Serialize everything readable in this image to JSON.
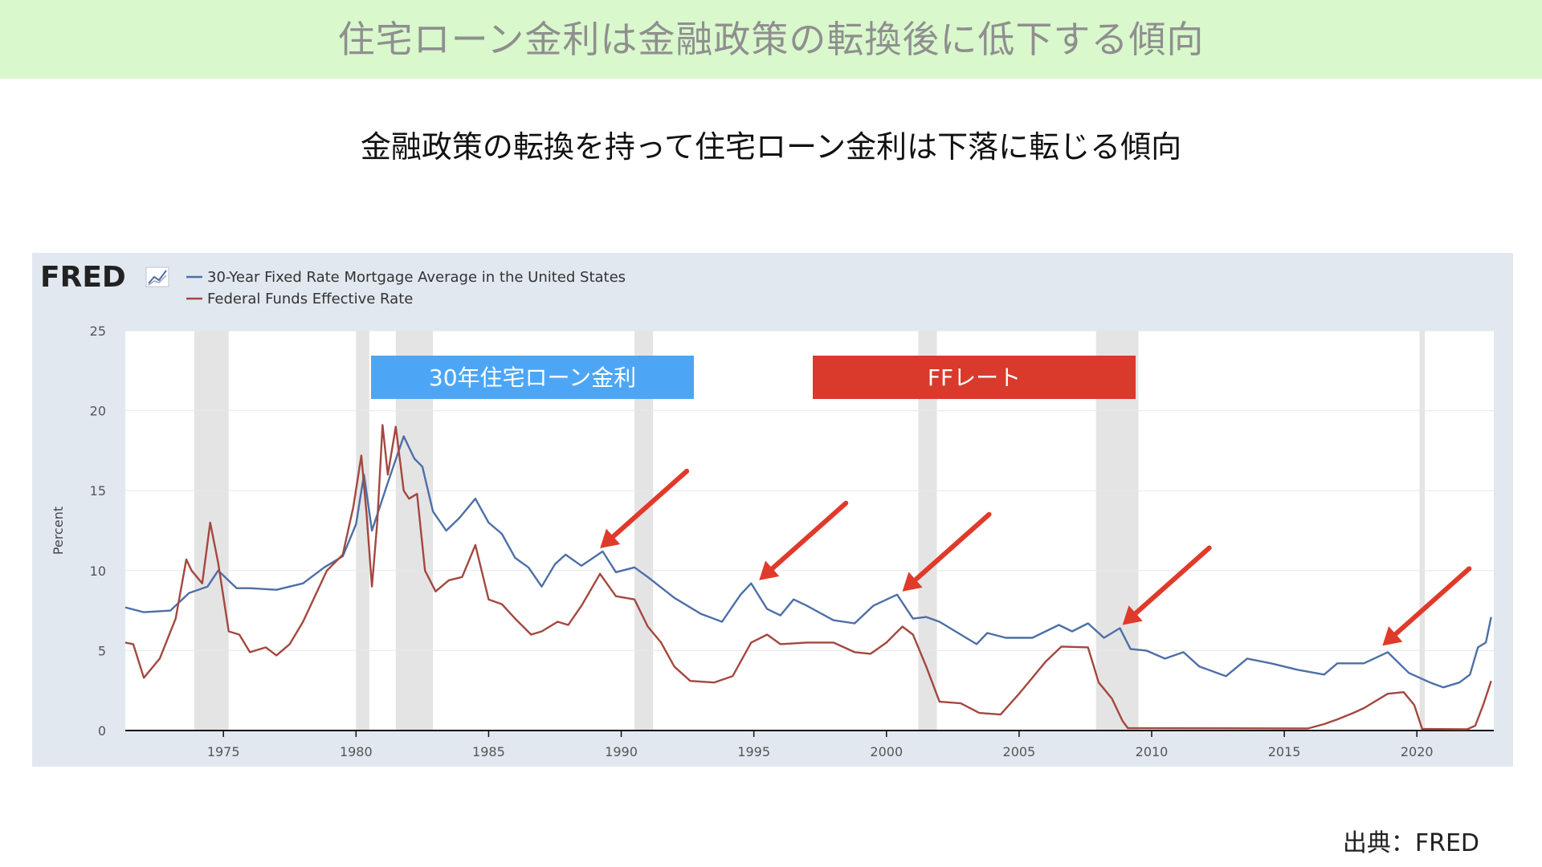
{
  "header": {
    "title": "住宅ローン金利は金融政策の転換後に低下する傾向"
  },
  "subtitle": "金融政策の転換を持って住宅ローン金利は下落に転じる傾向",
  "source": "出典：FRED",
  "chart_data": {
    "type": "line",
    "logo": "FRED",
    "title": "",
    "xlabel": "",
    "ylabel": "Percent",
    "xlim": [
      1971.3,
      2022.9
    ],
    "ylim": [
      0,
      25
    ],
    "x_ticks": [
      1975,
      1980,
      1985,
      1990,
      1995,
      2000,
      2005,
      2010,
      2015,
      2020
    ],
    "y_ticks": [
      0,
      5,
      10,
      15,
      20,
      25
    ],
    "grid": true,
    "legend_position": "top-left",
    "recessions": [
      [
        1973.9,
        1975.2
      ],
      [
        1980.0,
        1980.5
      ],
      [
        1981.5,
        1982.9
      ],
      [
        1990.5,
        1991.2
      ],
      [
        2001.2,
        2001.9
      ],
      [
        2007.9,
        2009.5
      ],
      [
        2020.1,
        2020.3
      ]
    ],
    "series": [
      {
        "name": "30-Year Fixed Rate Mortgage Average in the United States",
        "color": "#4d6fa6",
        "points": [
          [
            1971.3,
            7.7
          ],
          [
            1972.0,
            7.4
          ],
          [
            1973.0,
            7.5
          ],
          [
            1973.7,
            8.6
          ],
          [
            1974.4,
            9.0
          ],
          [
            1974.8,
            10.0
          ],
          [
            1975.5,
            8.9
          ],
          [
            1976.0,
            8.9
          ],
          [
            1977.0,
            8.8
          ],
          [
            1978.0,
            9.2
          ],
          [
            1978.8,
            10.2
          ],
          [
            1979.5,
            10.9
          ],
          [
            1980.0,
            12.9
          ],
          [
            1980.3,
            16.0
          ],
          [
            1980.6,
            12.5
          ],
          [
            1980.9,
            14.0
          ],
          [
            1981.2,
            15.5
          ],
          [
            1981.8,
            18.4
          ],
          [
            1982.2,
            17.0
          ],
          [
            1982.5,
            16.5
          ],
          [
            1982.9,
            13.7
          ],
          [
            1983.4,
            12.5
          ],
          [
            1983.9,
            13.3
          ],
          [
            1984.5,
            14.5
          ],
          [
            1985.0,
            13.0
          ],
          [
            1985.5,
            12.3
          ],
          [
            1986.0,
            10.8
          ],
          [
            1986.5,
            10.2
          ],
          [
            1987.0,
            9.0
          ],
          [
            1987.5,
            10.4
          ],
          [
            1987.9,
            11.0
          ],
          [
            1988.5,
            10.3
          ],
          [
            1989.3,
            11.2
          ],
          [
            1989.8,
            9.9
          ],
          [
            1990.5,
            10.2
          ],
          [
            1991.0,
            9.6
          ],
          [
            1992.0,
            8.3
          ],
          [
            1993.0,
            7.3
          ],
          [
            1993.8,
            6.8
          ],
          [
            1994.5,
            8.5
          ],
          [
            1994.9,
            9.2
          ],
          [
            1995.5,
            7.6
          ],
          [
            1996.0,
            7.2
          ],
          [
            1996.5,
            8.2
          ],
          [
            1997.0,
            7.8
          ],
          [
            1998.0,
            6.9
          ],
          [
            1998.8,
            6.7
          ],
          [
            1999.5,
            7.8
          ],
          [
            2000.4,
            8.5
          ],
          [
            2001.0,
            7.0
          ],
          [
            2001.5,
            7.1
          ],
          [
            2002.0,
            6.8
          ],
          [
            2003.4,
            5.4
          ],
          [
            2003.8,
            6.1
          ],
          [
            2004.5,
            5.8
          ],
          [
            2005.5,
            5.8
          ],
          [
            2006.5,
            6.6
          ],
          [
            2007.0,
            6.2
          ],
          [
            2007.6,
            6.7
          ],
          [
            2008.2,
            5.8
          ],
          [
            2008.8,
            6.4
          ],
          [
            2009.2,
            5.1
          ],
          [
            2009.8,
            5.0
          ],
          [
            2010.5,
            4.5
          ],
          [
            2011.2,
            4.9
          ],
          [
            2011.8,
            4.0
          ],
          [
            2012.8,
            3.4
          ],
          [
            2013.6,
            4.5
          ],
          [
            2014.5,
            4.2
          ],
          [
            2015.5,
            3.8
          ],
          [
            2016.5,
            3.5
          ],
          [
            2017.0,
            4.2
          ],
          [
            2018.0,
            4.2
          ],
          [
            2018.9,
            4.9
          ],
          [
            2019.7,
            3.6
          ],
          [
            2020.5,
            3.0
          ],
          [
            2021.0,
            2.7
          ],
          [
            2021.6,
            3.0
          ],
          [
            2022.0,
            3.5
          ],
          [
            2022.3,
            5.2
          ],
          [
            2022.6,
            5.5
          ],
          [
            2022.8,
            7.1
          ]
        ]
      },
      {
        "name": "Federal Funds Effective Rate",
        "color": "#a3483f",
        "points": [
          [
            1971.3,
            5.5
          ],
          [
            1971.6,
            5.4
          ],
          [
            1972.0,
            3.3
          ],
          [
            1972.6,
            4.5
          ],
          [
            1973.2,
            7.0
          ],
          [
            1973.6,
            10.7
          ],
          [
            1973.8,
            10.0
          ],
          [
            1974.2,
            9.2
          ],
          [
            1974.5,
            13.0
          ],
          [
            1974.8,
            10.5
          ],
          [
            1975.2,
            6.2
          ],
          [
            1975.6,
            6.0
          ],
          [
            1976.0,
            4.9
          ],
          [
            1976.6,
            5.2
          ],
          [
            1977.0,
            4.7
          ],
          [
            1977.5,
            5.4
          ],
          [
            1978.0,
            6.8
          ],
          [
            1978.9,
            10.0
          ],
          [
            1979.5,
            11.0
          ],
          [
            1979.9,
            14.0
          ],
          [
            1980.2,
            17.2
          ],
          [
            1980.4,
            13.5
          ],
          [
            1980.6,
            9.0
          ],
          [
            1980.8,
            13.0
          ],
          [
            1981.0,
            19.1
          ],
          [
            1981.2,
            16.0
          ],
          [
            1981.5,
            19.0
          ],
          [
            1981.8,
            15.0
          ],
          [
            1982.0,
            14.5
          ],
          [
            1982.3,
            14.8
          ],
          [
            1982.6,
            10.0
          ],
          [
            1983.0,
            8.7
          ],
          [
            1983.5,
            9.4
          ],
          [
            1984.0,
            9.6
          ],
          [
            1984.5,
            11.6
          ],
          [
            1985.0,
            8.2
          ],
          [
            1985.5,
            7.9
          ],
          [
            1986.0,
            7.0
          ],
          [
            1986.6,
            6.0
          ],
          [
            1987.0,
            6.2
          ],
          [
            1987.6,
            6.8
          ],
          [
            1988.0,
            6.6
          ],
          [
            1988.5,
            7.8
          ],
          [
            1989.2,
            9.8
          ],
          [
            1989.8,
            8.4
          ],
          [
            1990.5,
            8.2
          ],
          [
            1991.0,
            6.5
          ],
          [
            1991.5,
            5.5
          ],
          [
            1992.0,
            4.0
          ],
          [
            1992.6,
            3.1
          ],
          [
            1993.5,
            3.0
          ],
          [
            1994.2,
            3.4
          ],
          [
            1994.9,
            5.5
          ],
          [
            1995.5,
            6.0
          ],
          [
            1996.0,
            5.4
          ],
          [
            1997.0,
            5.5
          ],
          [
            1998.0,
            5.5
          ],
          [
            1998.8,
            4.9
          ],
          [
            1999.4,
            4.8
          ],
          [
            2000.0,
            5.5
          ],
          [
            2000.6,
            6.5
          ],
          [
            2001.0,
            6.0
          ],
          [
            2001.5,
            4.0
          ],
          [
            2002.0,
            1.8
          ],
          [
            2002.8,
            1.7
          ],
          [
            2003.5,
            1.1
          ],
          [
            2004.3,
            1.0
          ],
          [
            2005.0,
            2.3
          ],
          [
            2006.0,
            4.3
          ],
          [
            2006.6,
            5.25
          ],
          [
            2007.6,
            5.2
          ],
          [
            2008.0,
            3.0
          ],
          [
            2008.5,
            2.0
          ],
          [
            2008.9,
            0.6
          ],
          [
            2009.1,
            0.15
          ],
          [
            2015.9,
            0.13
          ],
          [
            2016.5,
            0.4
          ],
          [
            2017.0,
            0.7
          ],
          [
            2017.6,
            1.1
          ],
          [
            2018.0,
            1.4
          ],
          [
            2018.9,
            2.3
          ],
          [
            2019.5,
            2.4
          ],
          [
            2019.9,
            1.6
          ],
          [
            2020.2,
            0.1
          ],
          [
            2021.9,
            0.08
          ],
          [
            2022.2,
            0.3
          ],
          [
            2022.5,
            1.6
          ],
          [
            2022.8,
            3.1
          ]
        ]
      }
    ],
    "labels": [
      {
        "text": "30年住宅ローン金利",
        "background": "#4da6f5",
        "color": "#ffffff"
      },
      {
        "text": "FFレート",
        "background": "#d93a2b",
        "color": "#ffffff"
      }
    ],
    "annotations_color": "#e03a2a",
    "arrows": [
      {
        "tip": [
          1989.2,
          11.4
        ]
      },
      {
        "tip": [
          1995.2,
          9.4
        ]
      },
      {
        "tip": [
          2000.6,
          8.7
        ]
      },
      {
        "tip": [
          2008.9,
          6.6
        ]
      },
      {
        "tip": [
          2018.7,
          5.3
        ]
      }
    ]
  }
}
